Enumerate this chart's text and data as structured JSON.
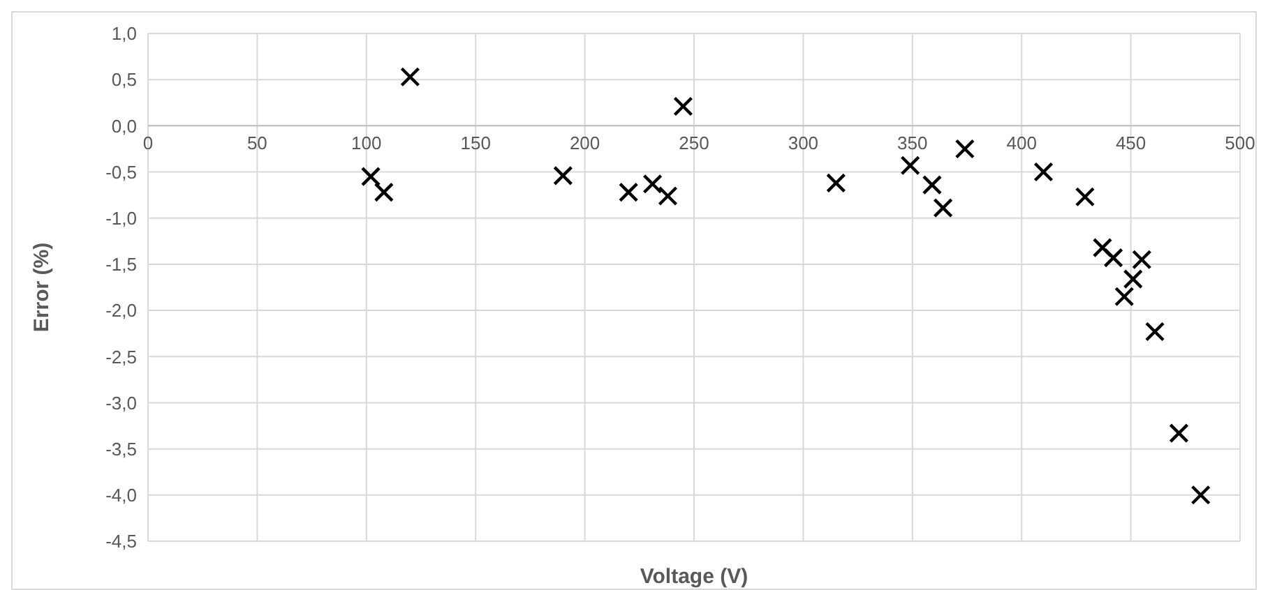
{
  "chart_data": {
    "type": "scatter",
    "xlabel": "Voltage (V)",
    "ylabel": "Error (%)",
    "x": [
      102,
      108,
      120,
      190,
      220,
      231,
      238,
      245,
      315,
      349,
      359,
      364,
      374,
      410,
      429,
      437,
      442,
      455,
      451,
      447,
      461,
      472,
      482
    ],
    "series": [
      {
        "color": "#000000",
        "values": [
          -0.55,
          -0.72,
          0.53,
          -0.54,
          -0.72,
          -0.63,
          -0.76,
          0.21,
          -0.62,
          -0.43,
          -0.64,
          -0.89,
          -0.25,
          -0.5,
          -0.77,
          -1.32,
          -1.43,
          -1.45,
          -1.66,
          -1.85,
          -2.23,
          -3.33,
          -4.0
        ]
      }
    ],
    "xlim": [
      0,
      500
    ],
    "xticks": [
      0,
      50,
      100,
      150,
      200,
      250,
      300,
      350,
      400,
      450,
      500
    ],
    "ylim": [
      -4.5,
      1
    ],
    "yticks": [
      {
        "value": 1,
        "label": "1,0"
      },
      {
        "value": 0.5,
        "label": "0,5"
      },
      {
        "value": 0,
        "label": "0,0"
      },
      {
        "value": -0.5,
        "label": "-0,5"
      },
      {
        "value": -1,
        "label": "-1,0"
      },
      {
        "value": -1.5,
        "label": "-1,5"
      },
      {
        "value": -2,
        "label": "-2,0"
      },
      {
        "value": -2.5,
        "label": "-2,5"
      },
      {
        "value": -3,
        "label": "-3,0"
      },
      {
        "value": -3.5,
        "label": "-3,5"
      },
      {
        "value": -4,
        "label": "-4,0"
      },
      {
        "value": -4.5,
        "label": "-4,5"
      }
    ],
    "grid": true,
    "marker": "cross",
    "legend": false
  }
}
